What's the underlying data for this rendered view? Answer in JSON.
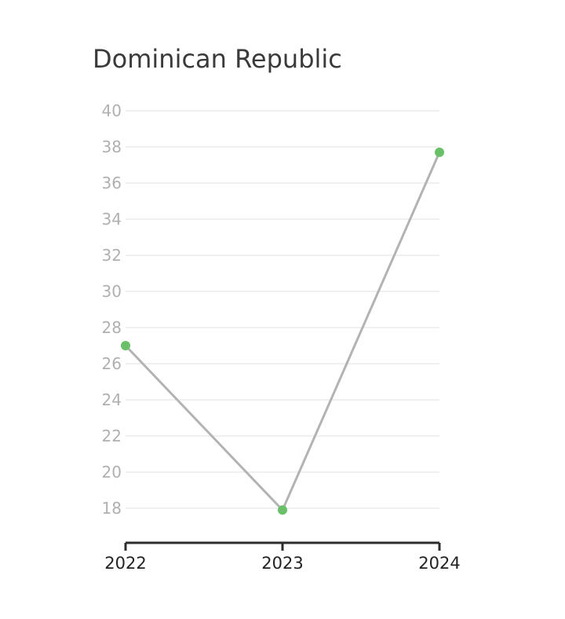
{
  "chart_data": {
    "type": "line",
    "title": "Dominican Republic",
    "x": [
      "2022",
      "2023",
      "2024"
    ],
    "series": [
      {
        "values": [
          27.0,
          17.9,
          37.7
        ]
      }
    ],
    "yticks": [
      "18",
      "20",
      "22",
      "24",
      "26",
      "28",
      "30",
      "32",
      "34",
      "36",
      "38",
      "40"
    ],
    "ylim": [
      16.2,
      40
    ],
    "xlabel": "",
    "ylabel": "",
    "grid": true,
    "line_color": "#b3b3b3",
    "marker_color": "#6abf69",
    "axis_color": "#2d2d2d"
  }
}
